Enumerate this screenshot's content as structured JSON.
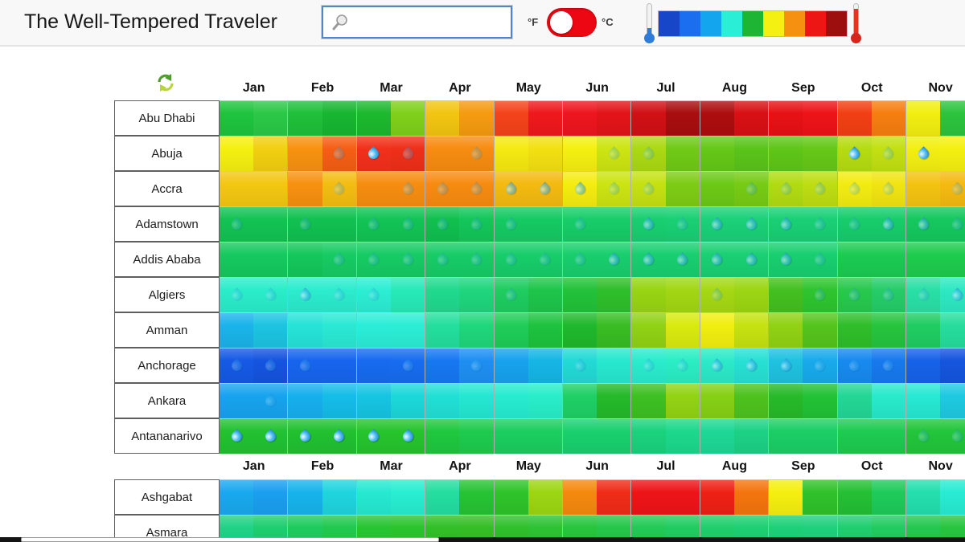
{
  "header": {
    "title": "The Well-Tempered Traveler",
    "search_value": "",
    "unit_f_label": "°F",
    "unit_c_label": "°C",
    "toggle_color": "#ec0712",
    "toggle_knob_side": "left"
  },
  "legend": {
    "colors": [
      "#1746c8",
      "#1b6ef0",
      "#14a5ef",
      "#2aeed6",
      "#1eb534",
      "#f4f011",
      "#f59011",
      "#ee1515",
      "#9d0e0e"
    ]
  },
  "months": [
    "Jan",
    "Feb",
    "Mar",
    "Apr",
    "May",
    "Jun",
    "Jul",
    "Aug",
    "Sep",
    "Oct",
    "Nov"
  ],
  "grid": {
    "cities": [
      {
        "name": "Abu Dhabi",
        "cells": [
          [
            "#1ec43e",
            "#2bc847",
            "",
            ""
          ],
          [
            "#1fc03a",
            "#17b631",
            "",
            ""
          ],
          [
            "#1cb92e",
            "#7fd01b",
            "",
            ""
          ],
          [
            "#f2c511",
            "#f59b10",
            "",
            ""
          ],
          [
            "#f4431a",
            "#ef181c",
            "",
            ""
          ],
          [
            "#ee151f",
            "#e31419",
            "",
            ""
          ],
          [
            "#d11015",
            "#a90d0f",
            "",
            ""
          ],
          [
            "#ad0d0e",
            "#d81014",
            "",
            ""
          ],
          [
            "#e71115",
            "#ee1318",
            "",
            ""
          ],
          [
            "#f23f13",
            "#f67e0f",
            "",
            ""
          ],
          [
            "#f2ee11",
            "#2cc43e",
            "",
            ""
          ]
        ]
      },
      {
        "name": "Abuja",
        "cells": [
          [
            "#f5f011",
            "#f2cf10",
            "",
            ""
          ],
          [
            "#f79210",
            "#f55e14",
            "",
            "f"
          ],
          [
            "#f2301b",
            "#ef2f19",
            "d",
            "f"
          ],
          [
            "#f78c10",
            "#f78c10",
            "",
            "f"
          ],
          [
            "#f5ea11",
            "#f3e012",
            "",
            ""
          ],
          [
            "#f5f011",
            "#cde512",
            "",
            "f"
          ],
          [
            "#abd912",
            "#70ca16",
            "f",
            ""
          ],
          [
            "#65c817",
            "#5ac41a",
            "",
            ""
          ],
          [
            "#5fc618",
            "#66c817",
            "",
            ""
          ],
          [
            "#b5dc12",
            "#c2e012",
            "d",
            "f"
          ],
          [
            "#f3ef12",
            "#f5f011",
            "d",
            ""
          ]
        ]
      },
      {
        "name": "Accra",
        "cells": [
          [
            "#f3c711",
            "#f3c711",
            "",
            ""
          ],
          [
            "#f79110",
            "#f3bd11",
            "",
            "f"
          ],
          [
            "#f78d10",
            "#f78d10",
            "",
            "f"
          ],
          [
            "#f78b10",
            "#f78b10",
            "f",
            "f"
          ],
          [
            "#f4ba10",
            "#f4ba10",
            "m",
            "m"
          ],
          [
            "#f5ec11",
            "#cbe412",
            "m",
            "f"
          ],
          [
            "#c5e112",
            "#7ecc15",
            "f",
            ""
          ],
          [
            "#6cc916",
            "#77cb15",
            "",
            "f"
          ],
          [
            "#b2db12",
            "#bedd12",
            "f",
            "f"
          ],
          [
            "#f3ec11",
            "#f1e412",
            "f",
            "f"
          ],
          [
            "#f4c311",
            "#f5ba11",
            "",
            "f"
          ]
        ]
      },
      {
        "name": "Adamstown",
        "cells": [
          [
            "#12c353",
            "#12c353",
            "f",
            ""
          ],
          [
            "#11c150",
            "#11c150",
            "f",
            ""
          ],
          [
            "#12c455",
            "#12c455",
            "f",
            "f"
          ],
          [
            "#10c04f",
            "#13c65a",
            "f",
            "f"
          ],
          [
            "#15ca62",
            "#15ca62",
            "f",
            ""
          ],
          [
            "#17cd69",
            "#17cd69",
            "f",
            ""
          ],
          [
            "#18cf70",
            "#19d074",
            "m",
            "f"
          ],
          [
            "#1ad179",
            "#1ad179",
            "m",
            "m"
          ],
          [
            "#19d075",
            "#19d075",
            "m",
            "f"
          ],
          [
            "#17cd6b",
            "#17cd6b",
            "f",
            "m"
          ],
          [
            "#15c85e",
            "#15c85e",
            "m",
            "f"
          ]
        ]
      },
      {
        "name": "Addis Ababa",
        "cells": [
          [
            "#15c95f",
            "#15c95f",
            "",
            ""
          ],
          [
            "#14c75b",
            "#16cb63",
            "",
            "f"
          ],
          [
            "#16cb64",
            "#16cb64",
            "f",
            "f"
          ],
          [
            "#17cc67",
            "#17cc67",
            "f",
            "f"
          ],
          [
            "#17cd6a",
            "#17cd6a",
            "f",
            "f"
          ],
          [
            "#18ce6d",
            "#18ce6d",
            "f",
            "m"
          ],
          [
            "#18cf70",
            "#18cf70",
            "m",
            "m"
          ],
          [
            "#19d073",
            "#19d073",
            "m",
            "m"
          ],
          [
            "#18cf6f",
            "#18cf6f",
            "m",
            "f"
          ],
          [
            "#1bcb52",
            "#1bcb52",
            "",
            ""
          ],
          [
            "#1ecc4d",
            "#1ecc4d",
            "",
            ""
          ]
        ]
      },
      {
        "name": "Algiers",
        "cells": [
          [
            "#2aedca",
            "#2aedca",
            "f",
            "f"
          ],
          [
            "#2cecce",
            "#2cecce",
            "m",
            "f"
          ],
          [
            "#2ceed3",
            "#27eab8",
            "f",
            ""
          ],
          [
            "#20da8e",
            "#1fd67e",
            "",
            ""
          ],
          [
            "#1ecd60",
            "#1ec54a",
            "f",
            ""
          ],
          [
            "#22c23a",
            "#2fbf2b",
            "",
            ""
          ],
          [
            "#98d513",
            "#a2d713",
            "",
            ""
          ],
          [
            "#a6d813",
            "#9cd613",
            "f",
            ""
          ],
          [
            "#44c020",
            "#2ec52f",
            "",
            "f"
          ],
          [
            "#27c94e",
            "#25cd68",
            "f",
            "f"
          ],
          [
            "#29e0a5",
            "#2de9c3",
            "f",
            "m"
          ]
        ]
      },
      {
        "name": "Amman",
        "cells": [
          [
            "#1ab4ea",
            "#1cc4e2",
            "",
            ""
          ],
          [
            "#26e3d8",
            "#2ae9d4",
            "",
            ""
          ],
          [
            "#2beed8",
            "#2beed6",
            "",
            ""
          ],
          [
            "#23df9e",
            "#1fd77c",
            "",
            ""
          ],
          [
            "#1ecd58",
            "#1dc33e",
            "",
            ""
          ],
          [
            "#20b82c",
            "#38bd23",
            "",
            ""
          ],
          [
            "#90d214",
            "#d9ea0f",
            "",
            ""
          ],
          [
            "#f1ee10",
            "#c6e211",
            "",
            ""
          ],
          [
            "#90d214",
            "#55c41c",
            "",
            ""
          ],
          [
            "#2fbe2a",
            "#26c43e",
            "",
            ""
          ],
          [
            "#20cd62",
            "#26dd9e",
            "",
            ""
          ]
        ]
      },
      {
        "name": "Anchorage",
        "cells": [
          [
            "#1659e6",
            "#1554e0",
            "f",
            "f"
          ],
          [
            "#1765ee",
            "#1765ee",
            "f",
            ""
          ],
          [
            "#176bf0",
            "#176cf0",
            "",
            "f"
          ],
          [
            "#1777f2",
            "#1e8ff2",
            "",
            "f"
          ],
          [
            "#17a2ee",
            "#15b6e5",
            "",
            ""
          ],
          [
            "#23dad6",
            "#28e8d0",
            "f",
            ""
          ],
          [
            "#2aeccd",
            "#2aeec5",
            "f",
            "f"
          ],
          [
            "#2ceac9",
            "#27e1d4",
            "m",
            "m"
          ],
          [
            "#1fc2e0",
            "#18aaec",
            "m",
            "f"
          ],
          [
            "#178af0",
            "#1779ee",
            "f",
            "f"
          ],
          [
            "#1662e9",
            "#1555de",
            "",
            ""
          ]
        ]
      },
      {
        "name": "Ankara",
        "cells": [
          [
            "#17a3ee",
            "#17a3ee",
            "",
            "f"
          ],
          [
            "#17afee",
            "#14bde8",
            "",
            ""
          ],
          [
            "#16c5e2",
            "#1cd8da",
            "",
            ""
          ],
          [
            "#21e0d6",
            "#24e8d2",
            "",
            ""
          ],
          [
            "#26ecd0",
            "#28eec9",
            "",
            ""
          ],
          [
            "#1fd066",
            "#24ba2a",
            "",
            ""
          ],
          [
            "#3ec023",
            "#92d314",
            "",
            ""
          ],
          [
            "#86d015",
            "#4ec21e",
            "",
            ""
          ],
          [
            "#27ba29",
            "#22c236",
            "",
            ""
          ],
          [
            "#23d795",
            "#28eacb",
            "",
            ""
          ],
          [
            "#27e9d3",
            "#1ecae1",
            "",
            ""
          ]
        ]
      },
      {
        "name": "Antananarivo",
        "cells": [
          [
            "#22c231",
            "#22c231",
            "d",
            "d"
          ],
          [
            "#21c130",
            "#21c130",
            "d",
            "d"
          ],
          [
            "#26c42d",
            "#26c42d",
            "d",
            "d"
          ],
          [
            "#1fc83f",
            "#1ecb4e",
            "",
            ""
          ],
          [
            "#1bce5f",
            "#1bce5f",
            "",
            ""
          ],
          [
            "#19d06e",
            "#19d06e",
            "",
            ""
          ],
          [
            "#1ad37d",
            "#1cd88c",
            "",
            ""
          ],
          [
            "#1ed896",
            "#1cd285",
            "",
            ""
          ],
          [
            "#1bce66",
            "#1bce66",
            "",
            ""
          ],
          [
            "#1ecb51",
            "#1ecb51",
            "",
            ""
          ],
          [
            "#22c63b",
            "#22c63b",
            "f",
            "f"
          ]
        ]
      },
      {
        "name": "Ashgabat",
        "cells": [
          [
            "#19a9ee",
            "#1a9ff0",
            "",
            ""
          ],
          [
            "#17b3ec",
            "#1fd5de",
            "",
            ""
          ],
          [
            "#26e9d2",
            "#28eed1",
            "",
            ""
          ],
          [
            "#24dea0",
            "#27c334",
            "",
            ""
          ],
          [
            "#2fc42a",
            "#9cd613",
            "",
            ""
          ],
          [
            "#f5890e",
            "#f02c18",
            "",
            ""
          ],
          [
            "#ee1418",
            "#ee1418",
            "",
            ""
          ],
          [
            "#ef2015",
            "#f4750e",
            "",
            ""
          ],
          [
            "#f5ef10",
            "#30c22a",
            "",
            ""
          ],
          [
            "#24c034",
            "#1ecb5a",
            "",
            ""
          ],
          [
            "#24dfae",
            "#28ecd4",
            "",
            ""
          ]
        ]
      },
      {
        "name": "Asmara",
        "cells": [
          [
            "#1fd286",
            "#1dce6f",
            "",
            ""
          ],
          [
            "#1ecb5d",
            "#20c94f",
            "",
            ""
          ],
          [
            "#27c532",
            "#2ac42c",
            "",
            ""
          ],
          [
            "#31bf27",
            "#34be25",
            "",
            ""
          ],
          [
            "#2fc02b",
            "#2cc233",
            "",
            ""
          ],
          [
            "#27c53d",
            "#24c749",
            "",
            ""
          ],
          [
            "#21ca56",
            "#1fcc61",
            "",
            ""
          ],
          [
            "#1ece6b",
            "#1dcf73",
            "",
            ""
          ],
          [
            "#1dd078",
            "#1ed07b",
            "",
            ""
          ],
          [
            "#1fce6f",
            "#21cb5f",
            "",
            ""
          ],
          [
            "#23c84f",
            "#26c63f",
            "",
            ""
          ]
        ]
      }
    ]
  }
}
